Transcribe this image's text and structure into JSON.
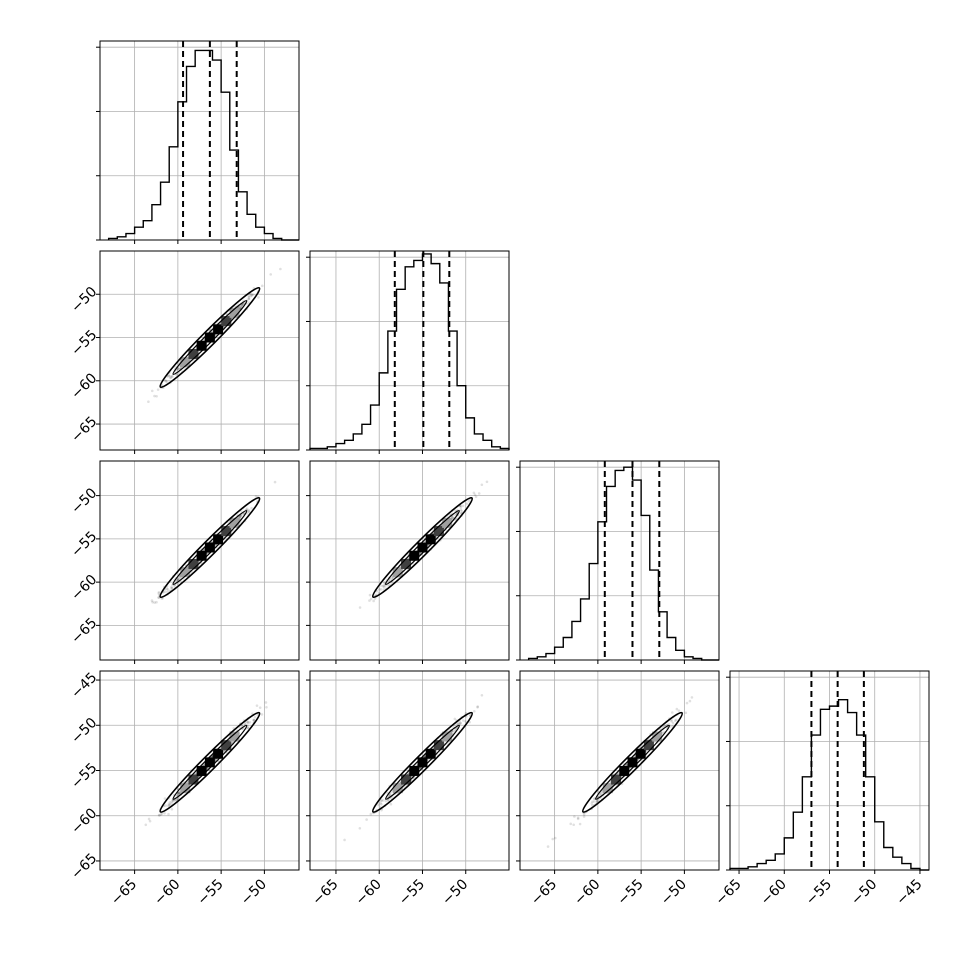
{
  "chart_data": {
    "type": "corner",
    "variables": 4,
    "colors": {
      "line": "#000000",
      "grid": "#b0b0b0",
      "background": "#ffffff"
    },
    "grid": true,
    "diagonal": [
      {
        "type": "histogram",
        "xlim": [
          -69,
          -46
        ],
        "quantiles": [
          -59.4,
          -56.3,
          -53.2
        ],
        "bin_edges": [
          -68,
          -67,
          -66,
          -65,
          -64,
          -63,
          -62,
          -61,
          -60,
          -59,
          -58,
          -57,
          -56,
          -55,
          -54,
          -53,
          -52,
          -51,
          -50,
          -49,
          -48,
          -47,
          -46
        ],
        "counts": [
          1,
          2,
          4,
          8,
          12,
          22,
          36,
          58,
          86,
          108,
          118,
          118,
          112,
          92,
          56,
          30,
          16,
          8,
          4,
          1,
          0,
          0
        ],
        "y_ticks": [
          0,
          40,
          80,
          120
        ]
      },
      {
        "type": "histogram",
        "xlim": [
          -68,
          -45
        ],
        "quantiles": [
          -58.2,
          -54.9,
          -51.9
        ],
        "bin_edges": [
          -68,
          -67,
          -66,
          -65,
          -64,
          -63,
          -62,
          -61,
          -60,
          -59,
          -58,
          -57,
          -56,
          -55,
          -54,
          -53,
          -52,
          -51,
          -50,
          -49,
          -48,
          -47,
          -46,
          -45
        ],
        "counts": [
          1,
          1,
          2,
          4,
          6,
          10,
          16,
          28,
          48,
          74,
          100,
          114,
          118,
          122,
          116,
          104,
          74,
          40,
          20,
          10,
          6,
          2,
          1
        ],
        "y_ticks": [
          0,
          40,
          80,
          120
        ]
      },
      {
        "type": "histogram",
        "xlim": [
          -69,
          -46
        ],
        "quantiles": [
          -59.2,
          -56.0,
          -52.9
        ],
        "bin_edges": [
          -68,
          -67,
          -66,
          -65,
          -64,
          -63,
          -62,
          -61,
          -60,
          -59,
          -58,
          -57,
          -56,
          -55,
          -54,
          -53,
          -52,
          -51,
          -50,
          -49,
          -48,
          -47,
          -46
        ],
        "counts": [
          1,
          2,
          4,
          8,
          14,
          24,
          38,
          60,
          86,
          108,
          118,
          120,
          112,
          90,
          56,
          30,
          14,
          6,
          2,
          1,
          0,
          0
        ],
        "y_ticks": [
          0,
          40,
          80,
          120
        ]
      },
      {
        "type": "histogram",
        "xlim": [
          -66,
          -44
        ],
        "quantiles": [
          -57.0,
          -54.1,
          -51.2
        ],
        "bin_edges": [
          -66,
          -65,
          -64,
          -63,
          -62,
          -61,
          -60,
          -59,
          -58,
          -57,
          -56,
          -55,
          -54,
          -53,
          -52,
          -51,
          -50,
          -49,
          -48,
          -47,
          -46,
          -45,
          -44
        ],
        "counts": [
          1,
          1,
          2,
          4,
          6,
          10,
          20,
          36,
          58,
          84,
          100,
          102,
          106,
          98,
          84,
          58,
          30,
          14,
          8,
          4,
          1,
          0
        ],
        "y_ticks": [
          0,
          40,
          80,
          120
        ]
      }
    ],
    "axes_limits": [
      [
        -69,
        -46
      ],
      [
        -68,
        -45
      ],
      [
        -69,
        -46
      ],
      [
        -66,
        -44
      ]
    ],
    "x_tick_values": [
      [
        -65,
        -60,
        -55,
        -50
      ],
      [
        -65,
        -60,
        -55,
        -50
      ],
      [
        -65,
        -60,
        -55,
        -50
      ],
      [
        -65,
        -60,
        -55,
        -50,
        -45
      ]
    ],
    "y_tick_values": [
      null,
      [
        -50,
        -55,
        -60,
        -65
      ],
      [
        -50,
        -55,
        -60,
        -65
      ],
      [
        -45,
        -50,
        -55,
        -60,
        -65
      ]
    ],
    "tick_label_text": {
      "m65": "−65",
      "m60": "−60",
      "m55": "−55",
      "m50": "−50",
      "m45": "−45"
    },
    "pairs": [
      {
        "row": 1,
        "col": 0,
        "type": "scatter-density",
        "correlation": 0.99,
        "mean": [
          -56.3,
          -55.0
        ],
        "spread": [
          2.5,
          2.5
        ]
      },
      {
        "row": 2,
        "col": 0,
        "type": "scatter-density",
        "correlation": 0.99,
        "mean": [
          -56.3,
          -56.0
        ],
        "spread": [
          2.5,
          2.5
        ]
      },
      {
        "row": 2,
        "col": 1,
        "type": "scatter-density",
        "correlation": 0.99,
        "mean": [
          -55.0,
          -56.0
        ],
        "spread": [
          2.5,
          2.5
        ]
      },
      {
        "row": 3,
        "col": 0,
        "type": "scatter-density",
        "correlation": 0.99,
        "mean": [
          -56.3,
          -54.1
        ],
        "spread": [
          2.5,
          2.3
        ]
      },
      {
        "row": 3,
        "col": 1,
        "type": "scatter-density",
        "correlation": 0.99,
        "mean": [
          -55.0,
          -54.1
        ],
        "spread": [
          2.5,
          2.3
        ]
      },
      {
        "row": 3,
        "col": 2,
        "type": "scatter-density",
        "correlation": 0.99,
        "mean": [
          -56.0,
          -54.1
        ],
        "spread": [
          2.5,
          2.3
        ]
      }
    ]
  }
}
